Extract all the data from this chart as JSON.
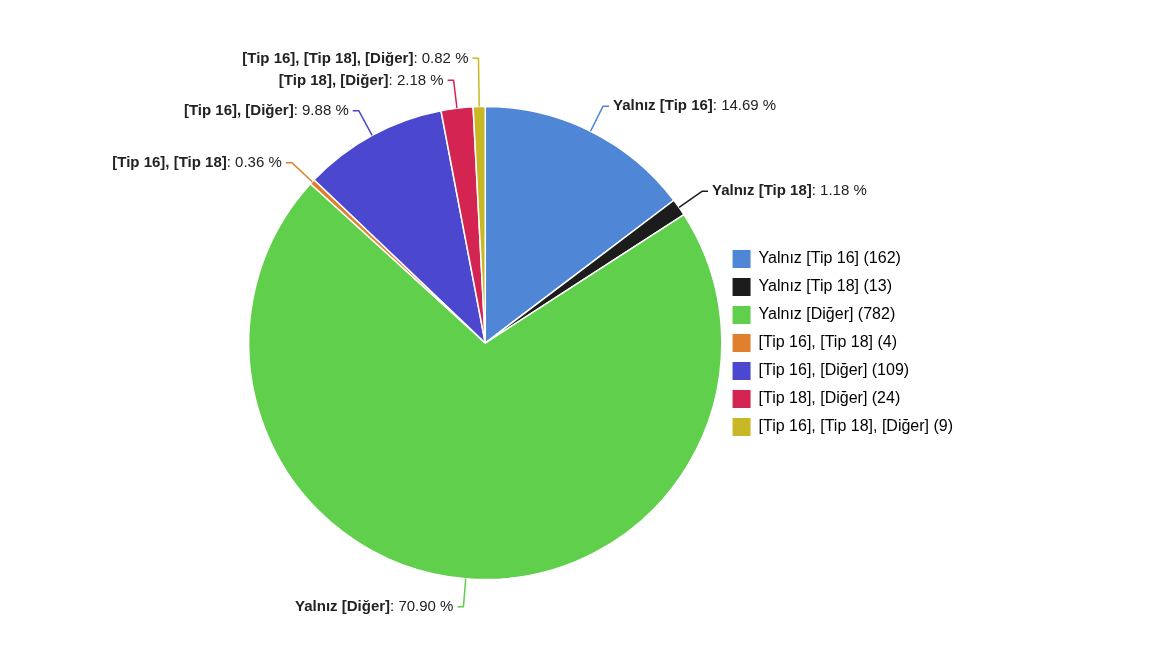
{
  "chart_data": {
    "type": "pie",
    "categories": [
      "Yalnız [Tip 16] (162)",
      "Yalnız [Tip 18] (13)",
      "Yalnız [Diğer] (782)",
      "[Tip 16], [Tip 18] (4)",
      "[Tip 16], [Diğer] (109)",
      "[Tip 18], [Diğer] (24)",
      "[Tip 16], [Tip 18], [Diğer] (9)"
    ],
    "values": [
      14.69,
      1.18,
      70.9,
      0.36,
      9.88,
      2.18,
      0.82
    ],
    "value_labels": [
      "Yalnız [Tip 16]: 14.69 %",
      "Yalnız [Tip 18]: 1.18 %",
      "Yalnız [Diğer]: 70.90 %",
      "[Tip 16], [Tip 18]: 0.36 %",
      "[Tip 16], [Diğer]: 9.88 %",
      "[Tip 18], [Diğer]: 2.18 %",
      "[Tip 16], [Tip 18], [Diğer]: 0.82 %"
    ],
    "colors": [
      "#4f86d6",
      "#1c1c1c",
      "#5fcf4c",
      "#e0802e",
      "#4b47cf",
      "#d42552",
      "#c9b825"
    ],
    "legend": "right"
  }
}
